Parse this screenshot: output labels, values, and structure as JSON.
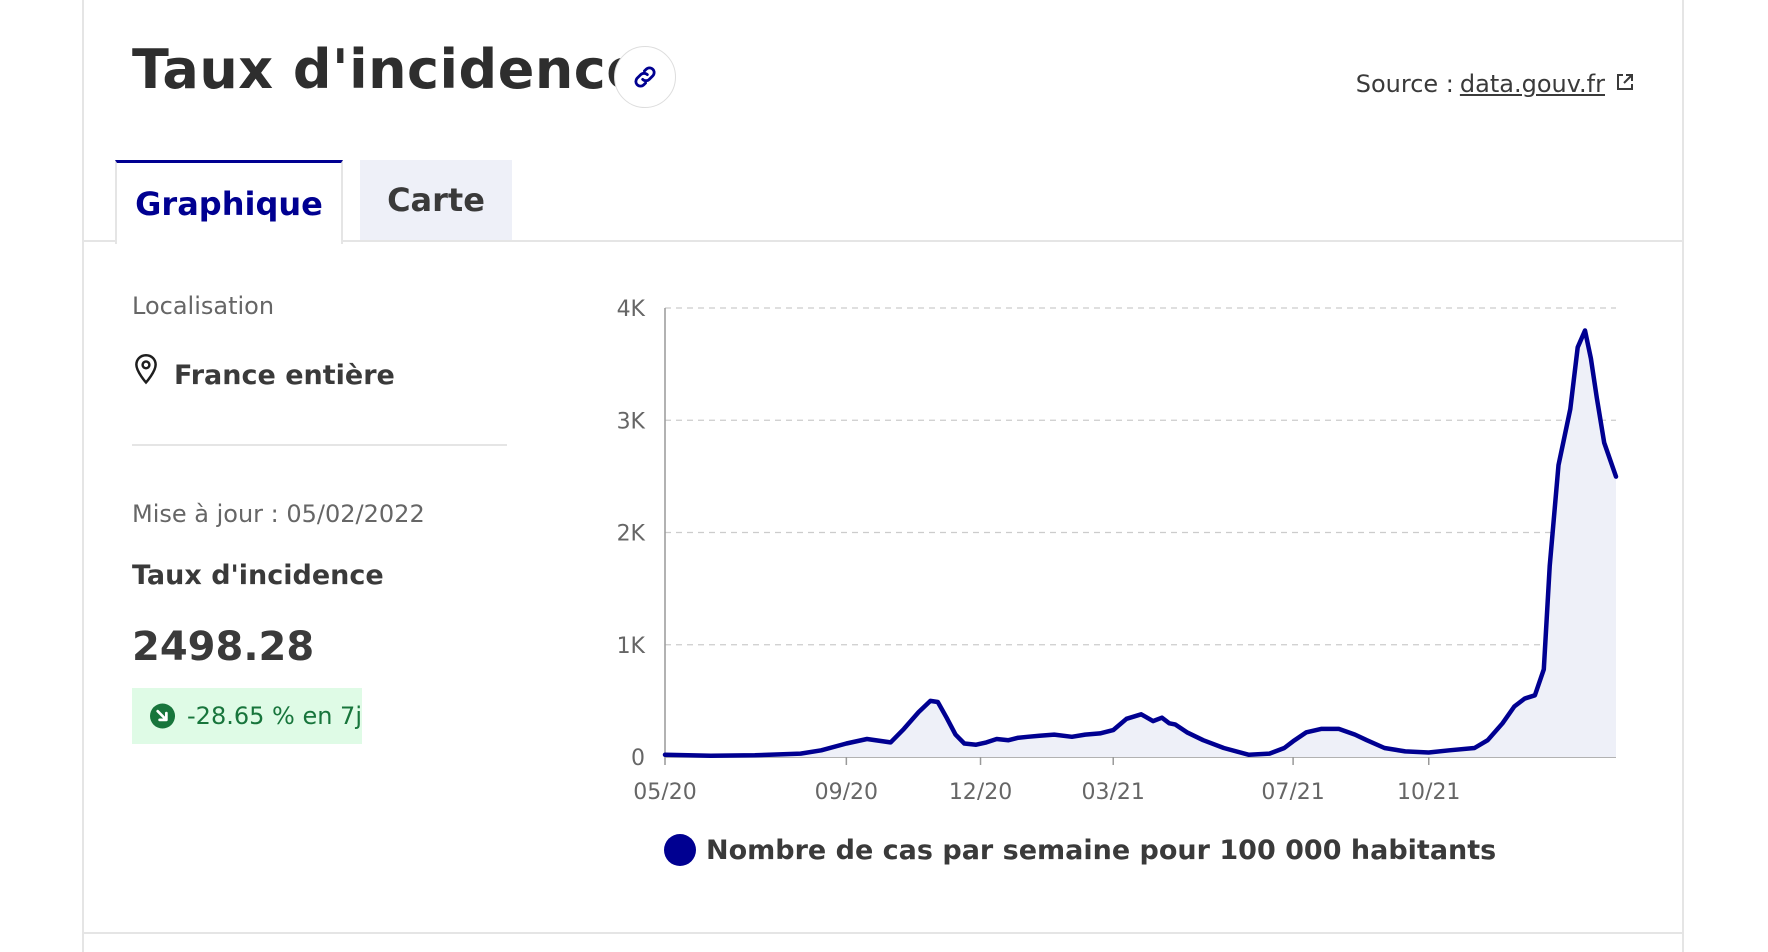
{
  "header": {
    "title": "Taux d'incidence",
    "source_label": "Source :",
    "source_link": "data.gouv.fr"
  },
  "tabs": [
    {
      "label": "Graphique",
      "active": true
    },
    {
      "label": "Carte",
      "active": false
    }
  ],
  "sidebar": {
    "location_label": "Localisation",
    "location_value": "France entière",
    "update_label": "Mise à jour : 05/02/2022",
    "kpi_label": "Taux d'incidence",
    "kpi_value": "2498.28",
    "trend_text": "-28.65 % en 7j"
  },
  "colors": {
    "accent": "#000091",
    "area_fill": "#eef0f8",
    "trend_bg": "#dffbe6",
    "trend_text": "#18753c"
  },
  "icons": {
    "link": "link-icon",
    "external": "external-link-icon",
    "location": "map-pin-icon",
    "trend": "arrow-down-right-icon"
  },
  "chart_data": {
    "type": "area",
    "title": "",
    "xlabel": "",
    "ylabel": "",
    "ylim": [
      0,
      4000
    ],
    "yticks": [
      0,
      1000,
      2000,
      3000,
      4000
    ],
    "ytick_labels": [
      "0",
      "1K",
      "2K",
      "3K",
      "4K"
    ],
    "xticks": [
      "2020-05-01",
      "2020-09-01",
      "2020-12-01",
      "2021-03-01",
      "2021-07-01",
      "2021-10-01"
    ],
    "xtick_labels": [
      "05/20",
      "09/20",
      "12/20",
      "03/21",
      "07/21",
      "10/21"
    ],
    "grid": "horizontal dashed",
    "legend_position": "bottom",
    "series": [
      {
        "name": "Nombre de cas par semaine pour 100 000 habitants",
        "x": [
          "2020-05-01",
          "2020-06-01",
          "2020-07-01",
          "2020-08-01",
          "2020-08-15",
          "2020-09-01",
          "2020-09-15",
          "2020-10-01",
          "2020-10-10",
          "2020-10-20",
          "2020-10-28",
          "2020-11-02",
          "2020-11-08",
          "2020-11-14",
          "2020-11-20",
          "2020-11-28",
          "2020-12-05",
          "2020-12-12",
          "2020-12-20",
          "2020-12-26",
          "2021-01-02",
          "2021-01-10",
          "2021-01-20",
          "2021-02-01",
          "2021-02-10",
          "2021-02-20",
          "2021-03-01",
          "2021-03-10",
          "2021-03-20",
          "2021-03-28",
          "2021-04-03",
          "2021-04-08",
          "2021-04-12",
          "2021-04-20",
          "2021-05-01",
          "2021-05-15",
          "2021-06-01",
          "2021-06-15",
          "2021-06-25",
          "2021-07-01",
          "2021-07-10",
          "2021-07-20",
          "2021-08-01",
          "2021-08-12",
          "2021-08-20",
          "2021-09-01",
          "2021-09-15",
          "2021-10-01",
          "2021-10-15",
          "2021-11-01",
          "2021-11-10",
          "2021-11-20",
          "2021-11-28",
          "2021-12-05",
          "2021-12-12",
          "2021-12-18",
          "2021-12-22",
          "2021-12-28",
          "2022-01-01",
          "2022-01-05",
          "2022-01-10",
          "2022-01-15",
          "2022-01-19",
          "2022-01-23",
          "2022-01-28",
          "2022-02-05"
        ],
        "values": [
          20,
          12,
          15,
          30,
          60,
          120,
          160,
          130,
          250,
          400,
          500,
          490,
          350,
          200,
          120,
          110,
          130,
          160,
          150,
          170,
          180,
          190,
          200,
          180,
          200,
          210,
          240,
          340,
          380,
          320,
          350,
          300,
          290,
          220,
          150,
          80,
          20,
          30,
          80,
          140,
          220,
          250,
          250,
          200,
          150,
          80,
          50,
          40,
          60,
          80,
          150,
          300,
          450,
          520,
          550,
          780,
          1700,
          2600,
          2850,
          3100,
          3650,
          3800,
          3550,
          3200,
          2800,
          2498
        ]
      }
    ]
  }
}
